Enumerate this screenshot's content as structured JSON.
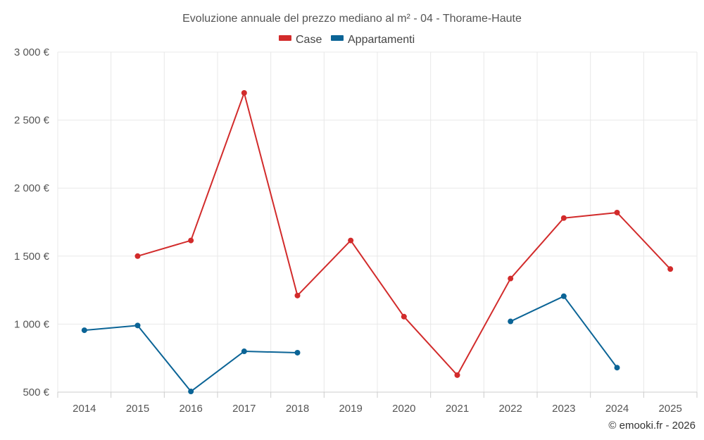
{
  "chart_data": {
    "type": "line",
    "title": "Evoluzione annuale del prezzo mediano al m² - 04 - Thorame-Haute",
    "categories": [
      "2014",
      "2015",
      "2016",
      "2017",
      "2018",
      "2019",
      "2020",
      "2021",
      "2022",
      "2023",
      "2024",
      "2025"
    ],
    "ylim": [
      500,
      3000
    ],
    "yticks": [
      500,
      1000,
      1500,
      2000,
      2500,
      3000
    ],
    "ytick_labels": [
      "500 €",
      "1 000 €",
      "1 500 €",
      "2 000 €",
      "2 500 €",
      "3 000 €"
    ],
    "grid": true,
    "legend_position": "top-center",
    "series": [
      {
        "name": "Case",
        "color": "#d22b2b",
        "values": [
          null,
          1500,
          1615,
          2700,
          1210,
          1615,
          1055,
          625,
          1335,
          1780,
          1820,
          1405
        ]
      },
      {
        "name": "Appartamenti",
        "color": "#0b6496",
        "values": [
          955,
          990,
          505,
          800,
          790,
          null,
          null,
          null,
          1020,
          1205,
          680,
          null
        ]
      }
    ]
  },
  "credit": "© emooki.fr - 2026"
}
